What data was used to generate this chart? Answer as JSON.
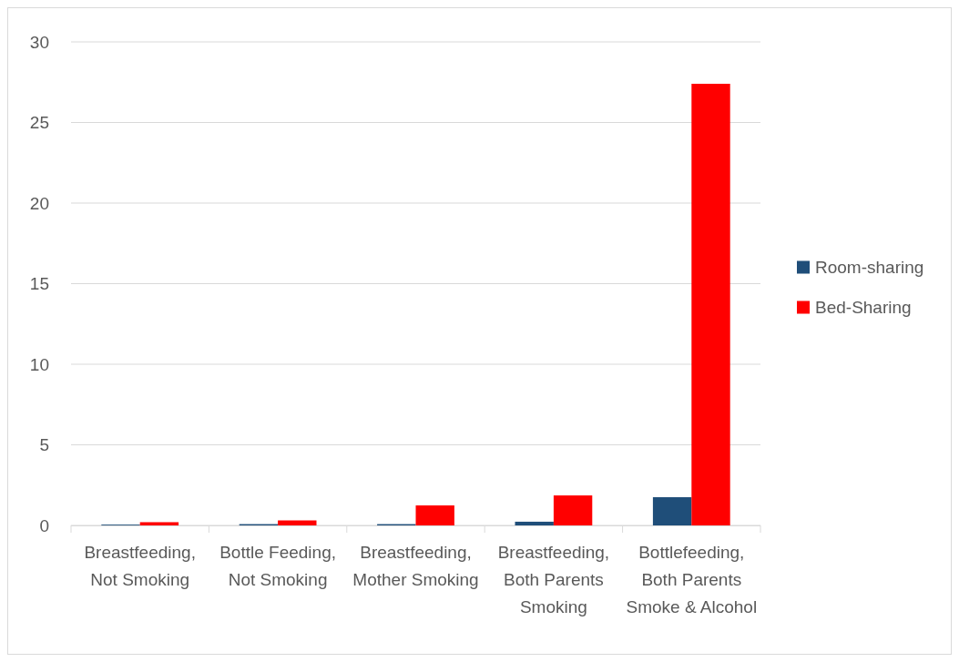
{
  "chart_data": {
    "type": "bar",
    "categories": [
      "Breastfeeding, Not Smoking",
      "Bottle Feeding, Not Smoking",
      "Breastfeeding, Mother Smoking",
      "Breastfeeding, Both Parents Smoking",
      "Bottlefeeding, Both Parents Smoke & Alcohol"
    ],
    "series": [
      {
        "name": "Room-sharing",
        "color": "#1f4e79",
        "values": [
          0.05,
          0.08,
          0.08,
          0.23,
          1.75
        ]
      },
      {
        "name": "Bed-Sharing",
        "color": "#ff0000",
        "values": [
          0.2,
          0.31,
          1.24,
          1.86,
          27.4
        ]
      }
    ],
    "ylim": [
      0,
      30
    ],
    "yticks": [
      0,
      5,
      10,
      15,
      20,
      25,
      30
    ],
    "grid": "y",
    "legend": "right"
  }
}
